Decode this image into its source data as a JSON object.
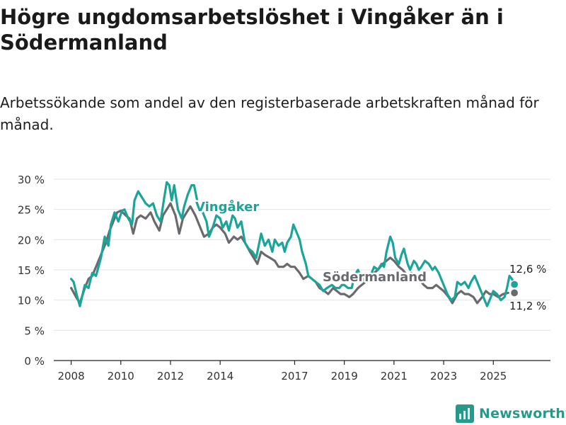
{
  "header": {
    "title": "Högre ungdomsarbetslöshet i Vingåker än i Södermanland",
    "subtitle": "Arbetssökande som andel av den registerbaserade arbetskraften månad för månad."
  },
  "footer": {
    "brand": "Newsworthy",
    "brand_icon": "newsworthy-logo-icon"
  },
  "colors": {
    "vingaker": "#1aa598",
    "sodermanland": "#6a6a6e",
    "grid": "#e3e3e3",
    "axis": "#222222"
  },
  "chart_data": {
    "type": "line",
    "title": "Högre ungdomsarbetslöshet i Vingåker än i Södermanland",
    "xlabel": "",
    "ylabel": "",
    "x_tick_labels": [
      "2008",
      "2010",
      "2012",
      "2014",
      "2017",
      "2019",
      "2021",
      "2023",
      "2025"
    ],
    "x_tick_years": [
      2008,
      2010,
      2012,
      2014,
      2017,
      2019,
      2021,
      2023,
      2025
    ],
    "xlim": [
      2007.3,
      2027.3
    ],
    "ylim": [
      0,
      30
    ],
    "y_ticks": [
      0,
      5,
      10,
      15,
      20,
      25,
      30
    ],
    "y_tick_labels": [
      "0 %",
      "5 %",
      "10 %",
      "15 %",
      "20 %",
      "25 %",
      "30 %"
    ],
    "grid": true,
    "series": [
      {
        "name": "Södermanland",
        "label": "Södermanland",
        "color": "#6a6a6e",
        "points": [
          [
            2008.0,
            12.0
          ],
          [
            2008.2,
            10.5
          ],
          [
            2008.35,
            9.5
          ],
          [
            2008.55,
            12.0
          ],
          [
            2008.7,
            13.5
          ],
          [
            2008.85,
            14.0
          ],
          [
            2009.0,
            15.5
          ],
          [
            2009.2,
            17.5
          ],
          [
            2009.4,
            19.5
          ],
          [
            2009.55,
            21.5
          ],
          [
            2009.7,
            23.0
          ],
          [
            2009.85,
            24.5
          ],
          [
            2010.0,
            24.8
          ],
          [
            2010.2,
            24.0
          ],
          [
            2010.35,
            23.5
          ],
          [
            2010.5,
            21.0
          ],
          [
            2010.65,
            23.5
          ],
          [
            2010.8,
            24.0
          ],
          [
            2011.0,
            23.5
          ],
          [
            2011.2,
            24.5
          ],
          [
            2011.35,
            23.0
          ],
          [
            2011.55,
            21.5
          ],
          [
            2011.7,
            24.0
          ],
          [
            2011.85,
            25.0
          ],
          [
            2012.0,
            26.0
          ],
          [
            2012.1,
            25.0
          ],
          [
            2012.2,
            24.0
          ],
          [
            2012.35,
            21.0
          ],
          [
            2012.5,
            23.5
          ],
          [
            2012.65,
            24.5
          ],
          [
            2012.8,
            25.5
          ],
          [
            2013.0,
            24.0
          ],
          [
            2013.2,
            22.0
          ],
          [
            2013.35,
            20.5
          ],
          [
            2013.55,
            21.0
          ],
          [
            2013.7,
            22.0
          ],
          [
            2013.85,
            22.5
          ],
          [
            2014.0,
            22.0
          ],
          [
            2014.2,
            21.0
          ],
          [
            2014.35,
            19.5
          ],
          [
            2014.55,
            20.5
          ],
          [
            2014.7,
            20.0
          ],
          [
            2014.85,
            20.5
          ],
          [
            2015.0,
            19.5
          ],
          [
            2015.2,
            18.0
          ],
          [
            2015.35,
            17.0
          ],
          [
            2015.5,
            16.0
          ],
          [
            2015.65,
            18.0
          ],
          [
            2015.8,
            17.5
          ],
          [
            2016.0,
            17.0
          ],
          [
            2016.2,
            16.5
          ],
          [
            2016.35,
            15.5
          ],
          [
            2016.55,
            15.5
          ],
          [
            2016.7,
            16.0
          ],
          [
            2016.85,
            15.5
          ],
          [
            2017.0,
            15.5
          ],
          [
            2017.2,
            14.5
          ],
          [
            2017.35,
            13.5
          ],
          [
            2017.55,
            14.0
          ],
          [
            2017.7,
            13.5
          ],
          [
            2017.85,
            13.0
          ],
          [
            2018.0,
            12.0
          ],
          [
            2018.2,
            11.5
          ],
          [
            2018.35,
            11.0
          ],
          [
            2018.55,
            12.0
          ],
          [
            2018.7,
            11.5
          ],
          [
            2018.85,
            11.0
          ],
          [
            2019.0,
            11.0
          ],
          [
            2019.2,
            10.5
          ],
          [
            2019.35,
            11.0
          ],
          [
            2019.55,
            12.0
          ],
          [
            2019.7,
            12.5
          ],
          [
            2019.85,
            13.0
          ],
          [
            2020.0,
            13.5
          ],
          [
            2020.2,
            14.5
          ],
          [
            2020.35,
            15.0
          ],
          [
            2020.55,
            16.0
          ],
          [
            2020.7,
            16.5
          ],
          [
            2020.85,
            17.0
          ],
          [
            2021.0,
            16.5
          ],
          [
            2021.2,
            15.5
          ],
          [
            2021.35,
            15.0
          ],
          [
            2021.55,
            14.0
          ],
          [
            2021.7,
            14.5
          ],
          [
            2021.85,
            14.0
          ],
          [
            2022.0,
            13.5
          ],
          [
            2022.2,
            12.5
          ],
          [
            2022.35,
            12.0
          ],
          [
            2022.55,
            12.0
          ],
          [
            2022.7,
            12.5
          ],
          [
            2022.85,
            12.0
          ],
          [
            2023.0,
            11.5
          ],
          [
            2023.2,
            10.5
          ],
          [
            2023.35,
            9.5
          ],
          [
            2023.55,
            11.0
          ],
          [
            2023.7,
            11.5
          ],
          [
            2023.85,
            11.0
          ],
          [
            2024.0,
            11.0
          ],
          [
            2024.2,
            10.5
          ],
          [
            2024.35,
            9.5
          ],
          [
            2024.55,
            10.5
          ],
          [
            2024.7,
            11.5
          ],
          [
            2024.85,
            11.0
          ],
          [
            2025.0,
            11.0
          ],
          [
            2025.2,
            10.5
          ],
          [
            2025.4,
            11.0
          ],
          [
            2025.6,
            11.2
          ]
        ]
      },
      {
        "name": "Vingåker",
        "label": "Vingåker",
        "color": "#1aa598",
        "points": [
          [
            2008.0,
            13.5
          ],
          [
            2008.1,
            13.0
          ],
          [
            2008.25,
            10.5
          ],
          [
            2008.35,
            9.0
          ],
          [
            2008.55,
            12.5
          ],
          [
            2008.7,
            12.0
          ],
          [
            2008.85,
            14.5
          ],
          [
            2009.0,
            14.0
          ],
          [
            2009.2,
            17.0
          ],
          [
            2009.35,
            20.5
          ],
          [
            2009.5,
            19.0
          ],
          [
            2009.6,
            22.5
          ],
          [
            2009.75,
            24.5
          ],
          [
            2009.9,
            23.0
          ],
          [
            2010.05,
            24.8
          ],
          [
            2010.15,
            25.0
          ],
          [
            2010.3,
            23.5
          ],
          [
            2010.45,
            22.5
          ],
          [
            2010.55,
            26.5
          ],
          [
            2010.7,
            28.0
          ],
          [
            2010.85,
            27.0
          ],
          [
            2011.0,
            26.0
          ],
          [
            2011.15,
            25.5
          ],
          [
            2011.3,
            26.0
          ],
          [
            2011.45,
            24.0
          ],
          [
            2011.6,
            23.0
          ],
          [
            2011.75,
            27.0
          ],
          [
            2011.85,
            29.5
          ],
          [
            2011.95,
            29.0
          ],
          [
            2012.05,
            26.5
          ],
          [
            2012.15,
            29.0
          ],
          [
            2012.3,
            25.0
          ],
          [
            2012.45,
            23.5
          ],
          [
            2012.55,
            25.5
          ],
          [
            2012.7,
            27.5
          ],
          [
            2012.85,
            29.0
          ],
          [
            2012.95,
            29.0
          ],
          [
            2013.05,
            27.0
          ],
          [
            2013.15,
            25.0
          ],
          [
            2013.3,
            24.5
          ],
          [
            2013.45,
            23.0
          ],
          [
            2013.55,
            20.5
          ],
          [
            2013.7,
            22.0
          ],
          [
            2013.85,
            24.0
          ],
          [
            2014.0,
            23.5
          ],
          [
            2014.1,
            22.0
          ],
          [
            2014.25,
            23.0
          ],
          [
            2014.35,
            21.5
          ],
          [
            2014.5,
            24.0
          ],
          [
            2014.6,
            23.5
          ],
          [
            2014.7,
            22.0
          ],
          [
            2014.85,
            23.0
          ],
          [
            2015.0,
            19.5
          ],
          [
            2015.15,
            18.5
          ],
          [
            2015.3,
            18.0
          ],
          [
            2015.45,
            17.0
          ],
          [
            2015.55,
            19.0
          ],
          [
            2015.65,
            21.0
          ],
          [
            2015.8,
            19.0
          ],
          [
            2015.95,
            20.0
          ],
          [
            2016.1,
            18.0
          ],
          [
            2016.2,
            20.0
          ],
          [
            2016.35,
            19.0
          ],
          [
            2016.5,
            19.5
          ],
          [
            2016.6,
            18.0
          ],
          [
            2016.7,
            19.5
          ],
          [
            2016.85,
            20.5
          ],
          [
            2016.95,
            22.5
          ],
          [
            2017.1,
            21.0
          ],
          [
            2017.2,
            20.0
          ],
          [
            2017.3,
            18.0
          ],
          [
            2017.45,
            16.0
          ],
          [
            2017.55,
            14.0
          ],
          [
            2017.7,
            13.5
          ],
          [
            2017.85,
            13.0
          ],
          [
            2018.0,
            12.5
          ],
          [
            2018.15,
            11.5
          ],
          [
            2018.3,
            12.0
          ],
          [
            2018.5,
            12.5
          ],
          [
            2018.65,
            12.0
          ],
          [
            2018.8,
            12.0
          ],
          [
            2018.9,
            12.5
          ],
          [
            2019.0,
            12.5
          ],
          [
            2019.15,
            12.0
          ],
          [
            2019.3,
            12.0
          ],
          [
            2019.4,
            14.0
          ],
          [
            2019.55,
            15.0
          ],
          [
            2019.65,
            14.0
          ],
          [
            2019.75,
            13.5
          ],
          [
            2019.85,
            13.0
          ],
          [
            2019.95,
            13.5
          ],
          [
            2020.05,
            14.0
          ],
          [
            2020.2,
            15.5
          ],
          [
            2020.35,
            15.0
          ],
          [
            2020.5,
            16.0
          ],
          [
            2020.6,
            15.5
          ],
          [
            2020.7,
            18.0
          ],
          [
            2020.85,
            20.5
          ],
          [
            2020.95,
            19.5
          ],
          [
            2021.05,
            17.0
          ],
          [
            2021.2,
            16.0
          ],
          [
            2021.3,
            17.5
          ],
          [
            2021.4,
            18.5
          ],
          [
            2021.55,
            16.0
          ],
          [
            2021.65,
            15.0
          ],
          [
            2021.8,
            16.5
          ],
          [
            2021.9,
            16.0
          ],
          [
            2022.0,
            15.0
          ],
          [
            2022.1,
            15.5
          ],
          [
            2022.25,
            16.5
          ],
          [
            2022.4,
            16.0
          ],
          [
            2022.55,
            15.0
          ],
          [
            2022.65,
            15.5
          ],
          [
            2022.8,
            14.5
          ],
          [
            2022.9,
            13.5
          ],
          [
            2023.0,
            12.5
          ],
          [
            2023.15,
            11.0
          ],
          [
            2023.3,
            10.0
          ],
          [
            2023.45,
            10.5
          ],
          [
            2023.55,
            13.0
          ],
          [
            2023.7,
            12.5
          ],
          [
            2023.85,
            13.0
          ],
          [
            2024.0,
            12.0
          ],
          [
            2024.1,
            13.0
          ],
          [
            2024.25,
            14.0
          ],
          [
            2024.35,
            13.0
          ],
          [
            2024.5,
            11.5
          ],
          [
            2024.65,
            10.0
          ],
          [
            2024.75,
            9.0
          ],
          [
            2024.9,
            10.5
          ],
          [
            2025.0,
            11.5
          ],
          [
            2025.15,
            11.0
          ],
          [
            2025.3,
            10.0
          ],
          [
            2025.45,
            10.5
          ],
          [
            2025.55,
            12.0
          ],
          [
            2025.65,
            14.0
          ],
          [
            2025.75,
            13.5
          ],
          [
            2025.85,
            12.6
          ]
        ]
      }
    ],
    "annotations": [
      {
        "name": "vingaker-end-label",
        "series": "Vingåker",
        "text": "12,6 %",
        "x": 2025.85,
        "y": 12.6
      },
      {
        "name": "sodermanland-end-label",
        "series": "Södermanland",
        "text": "11,2 %",
        "x": 2025.85,
        "y": 11.2
      }
    ]
  }
}
